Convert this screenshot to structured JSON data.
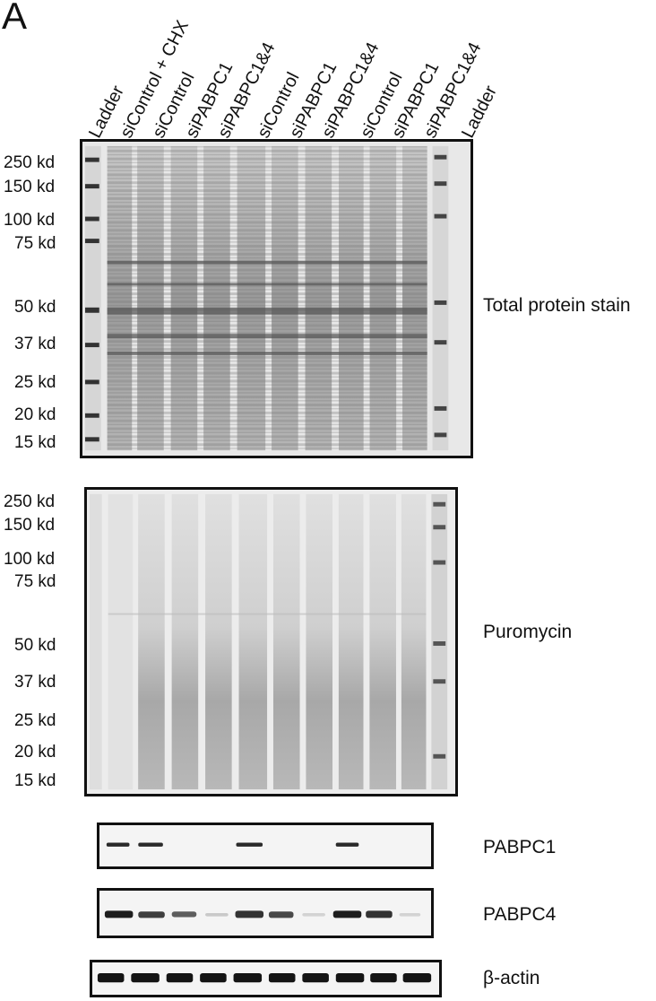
{
  "panel_letter": "A",
  "lanes": [
    "Ladder",
    "siControl + CHX",
    "siControl",
    "siPABPC1",
    "siPABPC1&4",
    "siControl",
    "siPABPC1",
    "siPABPC1&4",
    "siControl",
    "siPABPC1",
    "siPABPC1&4",
    "Ladder"
  ],
  "markers_total": [
    "250 kd",
    "150 kd",
    "100 kd",
    "75 kd",
    "50 kd",
    "37 kd",
    "25 kd",
    "20 kd",
    "15 kd"
  ],
  "markers_puro": [
    "250 kd",
    "150 kd",
    "100 kd",
    "75 kd",
    "50 kd",
    "37 kd",
    "25 kd",
    "20 kd",
    "15 kd"
  ],
  "blots": {
    "total": "Total protein stain",
    "puro": "Puromycin",
    "pabpc1": "PABPC1",
    "pabpc4": "PABPC4",
    "actin": "β-actin"
  }
}
